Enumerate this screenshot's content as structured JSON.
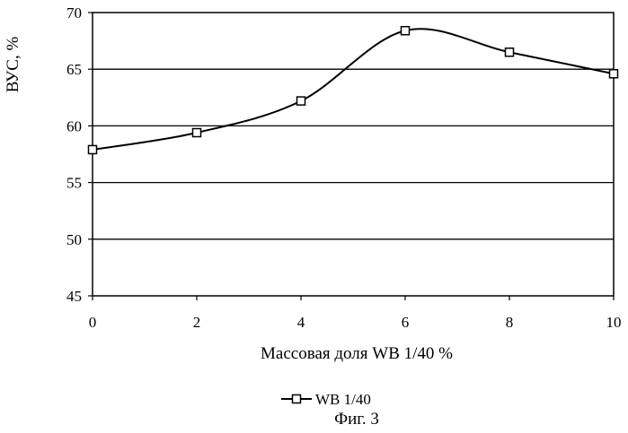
{
  "chart_data": {
    "type": "line",
    "title": "",
    "xlabel": "Массовая доля WB 1/40 %",
    "ylabel": "ВУС, %",
    "xlim": [
      0,
      10
    ],
    "ylim": [
      45,
      70
    ],
    "xticks": [
      0,
      2,
      4,
      6,
      8,
      10
    ],
    "yticks": [
      45,
      50,
      55,
      60,
      65,
      70
    ],
    "xtick_labels": [
      "0",
      "2",
      "4",
      "6",
      "8",
      "10"
    ],
    "ytick_labels": [
      "45",
      "50",
      "55",
      "60",
      "65",
      "70"
    ],
    "grid": "horizontal",
    "legend_position": "bottom-center",
    "series": [
      {
        "name": "WB 1/40",
        "marker": "open-square",
        "x": [
          0,
          2,
          4,
          6,
          8,
          10
        ],
        "y": [
          57.9,
          59.4,
          62.2,
          68.4,
          66.5,
          64.6
        ]
      }
    ]
  },
  "caption": "Фиг. 3"
}
